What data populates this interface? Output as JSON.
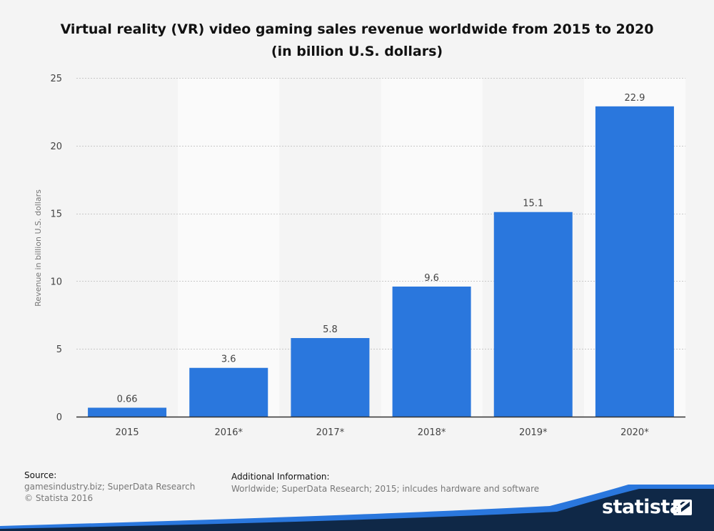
{
  "title_line1": "Virtual reality (VR) video gaming sales revenue worldwide from 2015 to 2020",
  "title_line2": "(in billion U.S. dollars)",
  "chart_data": {
    "type": "bar",
    "categories": [
      "2015",
      "2016*",
      "2017*",
      "2018*",
      "2019*",
      "2020*"
    ],
    "values": [
      0.66,
      3.6,
      5.8,
      9.6,
      15.1,
      22.9
    ],
    "value_labels": [
      "0.66",
      "3.6",
      "5.8",
      "9.6",
      "15.1",
      "22.9"
    ],
    "ylabel": "Revenue in billion U.S. dollars",
    "ylim": [
      0,
      25
    ],
    "yticks": [
      0,
      5,
      10,
      15,
      20,
      25
    ],
    "grid": true,
    "bar_color": "#2a77dd"
  },
  "footer": {
    "source_label": "Source:",
    "source_line1": "gamesindustry.biz; SuperData Research",
    "source_line2": "© Statista 2016",
    "info_label": "Additional Information:",
    "info_line": "Worldwide; SuperData Research; 2015; inlcudes hardware and software"
  },
  "brand": {
    "name": "statista",
    "color": "#0f2847"
  }
}
